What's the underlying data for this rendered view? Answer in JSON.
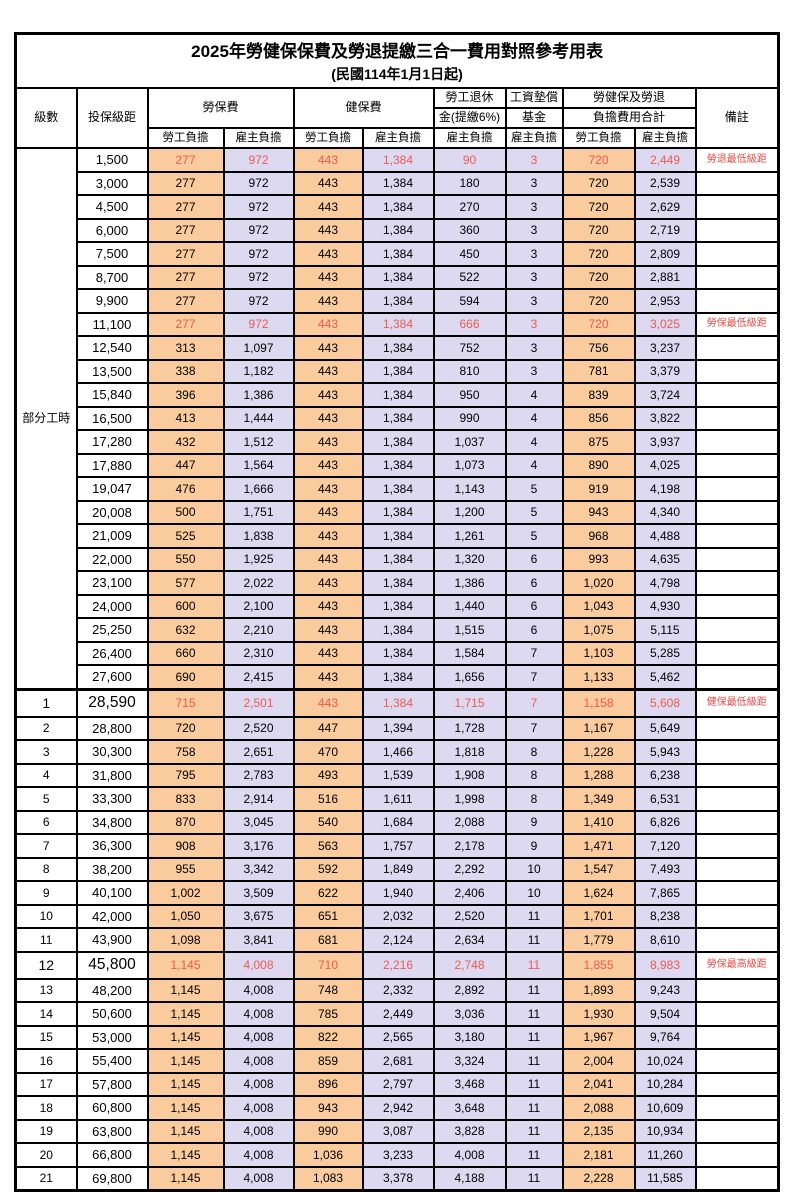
{
  "title": "2025年勞健保保費及勞退提繳三合一費用對照參考用表",
  "subtitle": "(民國114年1月1日起)",
  "header": {
    "level": "級數",
    "bracket": "投保級距",
    "labor_fee": "勞保費",
    "health_fee": "健保費",
    "pension_line1": "勞工退休",
    "pension_line2": "金(提繳6%)",
    "wage_fund_line1": "工資墊償",
    "wage_fund_line2": "基金",
    "total_line1": "勞健保及勞退",
    "total_line2": "負擔費用合計",
    "remark": "備註",
    "employee": "勞工負擔",
    "employer": "雇主負擔"
  },
  "part_time_label": "部分工時",
  "part_time_rowspan": 23,
  "colors": {
    "employee_bg": "#F9CB9D",
    "employer_bg": "#DCD9F0",
    "highlight_text": "#ED5A50",
    "border": "#000000"
  },
  "rows": [
    {
      "level": "",
      "bracket": "1,500",
      "values": [
        "277",
        "972",
        "443",
        "1,384",
        "90",
        "3",
        "720",
        "2,449"
      ],
      "remark": "勞退最低級距",
      "red": true,
      "big": false
    },
    {
      "level": "",
      "bracket": "3,000",
      "values": [
        "277",
        "972",
        "443",
        "1,384",
        "180",
        "3",
        "720",
        "2,539"
      ],
      "remark": "",
      "red": false,
      "big": false
    },
    {
      "level": "",
      "bracket": "4,500",
      "values": [
        "277",
        "972",
        "443",
        "1,384",
        "270",
        "3",
        "720",
        "2,629"
      ],
      "remark": "",
      "red": false,
      "big": false
    },
    {
      "level": "",
      "bracket": "6,000",
      "values": [
        "277",
        "972",
        "443",
        "1,384",
        "360",
        "3",
        "720",
        "2,719"
      ],
      "remark": "",
      "red": false,
      "big": false
    },
    {
      "level": "",
      "bracket": "7,500",
      "values": [
        "277",
        "972",
        "443",
        "1,384",
        "450",
        "3",
        "720",
        "2,809"
      ],
      "remark": "",
      "red": false,
      "big": false
    },
    {
      "level": "",
      "bracket": "8,700",
      "values": [
        "277",
        "972",
        "443",
        "1,384",
        "522",
        "3",
        "720",
        "2,881"
      ],
      "remark": "",
      "red": false,
      "big": false
    },
    {
      "level": "",
      "bracket": "9,900",
      "values": [
        "277",
        "972",
        "443",
        "1,384",
        "594",
        "3",
        "720",
        "2,953"
      ],
      "remark": "",
      "red": false,
      "big": false
    },
    {
      "level": "",
      "bracket": "11,100",
      "values": [
        "277",
        "972",
        "443",
        "1,384",
        "666",
        "3",
        "720",
        "3,025"
      ],
      "remark": "勞保最低級距",
      "red": true,
      "big": false
    },
    {
      "level": "",
      "bracket": "12,540",
      "values": [
        "313",
        "1,097",
        "443",
        "1,384",
        "752",
        "3",
        "756",
        "3,237"
      ],
      "remark": "",
      "red": false,
      "big": false
    },
    {
      "level": "",
      "bracket": "13,500",
      "values": [
        "338",
        "1,182",
        "443",
        "1,384",
        "810",
        "3",
        "781",
        "3,379"
      ],
      "remark": "",
      "red": false,
      "big": false
    },
    {
      "level": "",
      "bracket": "15,840",
      "values": [
        "396",
        "1,386",
        "443",
        "1,384",
        "950",
        "4",
        "839",
        "3,724"
      ],
      "remark": "",
      "red": false,
      "big": false
    },
    {
      "level": "",
      "bracket": "16,500",
      "values": [
        "413",
        "1,444",
        "443",
        "1,384",
        "990",
        "4",
        "856",
        "3,822"
      ],
      "remark": "",
      "red": false,
      "big": false
    },
    {
      "level": "",
      "bracket": "17,280",
      "values": [
        "432",
        "1,512",
        "443",
        "1,384",
        "1,037",
        "4",
        "875",
        "3,937"
      ],
      "remark": "",
      "red": false,
      "big": false
    },
    {
      "level": "",
      "bracket": "17,880",
      "values": [
        "447",
        "1,564",
        "443",
        "1,384",
        "1,073",
        "4",
        "890",
        "4,025"
      ],
      "remark": "",
      "red": false,
      "big": false
    },
    {
      "level": "",
      "bracket": "19,047",
      "values": [
        "476",
        "1,666",
        "443",
        "1,384",
        "1,143",
        "5",
        "919",
        "4,198"
      ],
      "remark": "",
      "red": false,
      "big": false
    },
    {
      "level": "",
      "bracket": "20,008",
      "values": [
        "500",
        "1,751",
        "443",
        "1,384",
        "1,200",
        "5",
        "943",
        "4,340"
      ],
      "remark": "",
      "red": false,
      "big": false
    },
    {
      "level": "",
      "bracket": "21,009",
      "values": [
        "525",
        "1,838",
        "443",
        "1,384",
        "1,261",
        "5",
        "968",
        "4,488"
      ],
      "remark": "",
      "red": false,
      "big": false
    },
    {
      "level": "",
      "bracket": "22,000",
      "values": [
        "550",
        "1,925",
        "443",
        "1,384",
        "1,320",
        "6",
        "993",
        "4,635"
      ],
      "remark": "",
      "red": false,
      "big": false
    },
    {
      "level": "",
      "bracket": "23,100",
      "values": [
        "577",
        "2,022",
        "443",
        "1,384",
        "1,386",
        "6",
        "1,020",
        "4,798"
      ],
      "remark": "",
      "red": false,
      "big": false
    },
    {
      "level": "",
      "bracket": "24,000",
      "values": [
        "600",
        "2,100",
        "443",
        "1,384",
        "1,440",
        "6",
        "1,043",
        "4,930"
      ],
      "remark": "",
      "red": false,
      "big": false
    },
    {
      "level": "",
      "bracket": "25,250",
      "values": [
        "632",
        "2,210",
        "443",
        "1,384",
        "1,515",
        "6",
        "1,075",
        "5,115"
      ],
      "remark": "",
      "red": false,
      "big": false
    },
    {
      "level": "",
      "bracket": "26,400",
      "values": [
        "660",
        "2,310",
        "443",
        "1,384",
        "1,584",
        "7",
        "1,103",
        "5,285"
      ],
      "remark": "",
      "red": false,
      "big": false
    },
    {
      "level": "",
      "bracket": "27,600",
      "values": [
        "690",
        "2,415",
        "443",
        "1,384",
        "1,656",
        "7",
        "1,133",
        "5,462"
      ],
      "remark": "",
      "red": false,
      "big": false
    },
    {
      "level": "1",
      "bracket": "28,590",
      "values": [
        "715",
        "2,501",
        "443",
        "1,384",
        "1,715",
        "7",
        "1,158",
        "5,608"
      ],
      "remark": "健保最低級距",
      "red": true,
      "big": true
    },
    {
      "level": "2",
      "bracket": "28,800",
      "values": [
        "720",
        "2,520",
        "447",
        "1,394",
        "1,728",
        "7",
        "1,167",
        "5,649"
      ],
      "remark": "",
      "red": false,
      "big": false
    },
    {
      "level": "3",
      "bracket": "30,300",
      "values": [
        "758",
        "2,651",
        "470",
        "1,466",
        "1,818",
        "8",
        "1,228",
        "5,943"
      ],
      "remark": "",
      "red": false,
      "big": false
    },
    {
      "level": "4",
      "bracket": "31,800",
      "values": [
        "795",
        "2,783",
        "493",
        "1,539",
        "1,908",
        "8",
        "1,288",
        "6,238"
      ],
      "remark": "",
      "red": false,
      "big": false
    },
    {
      "level": "5",
      "bracket": "33,300",
      "values": [
        "833",
        "2,914",
        "516",
        "1,611",
        "1,998",
        "8",
        "1,349",
        "6,531"
      ],
      "remark": "",
      "red": false,
      "big": false
    },
    {
      "level": "6",
      "bracket": "34,800",
      "values": [
        "870",
        "3,045",
        "540",
        "1,684",
        "2,088",
        "9",
        "1,410",
        "6,826"
      ],
      "remark": "",
      "red": false,
      "big": false
    },
    {
      "level": "7",
      "bracket": "36,300",
      "values": [
        "908",
        "3,176",
        "563",
        "1,757",
        "2,178",
        "9",
        "1,471",
        "7,120"
      ],
      "remark": "",
      "red": false,
      "big": false
    },
    {
      "level": "8",
      "bracket": "38,200",
      "values": [
        "955",
        "3,342",
        "592",
        "1,849",
        "2,292",
        "10",
        "1,547",
        "7,493"
      ],
      "remark": "",
      "red": false,
      "big": false
    },
    {
      "level": "9",
      "bracket": "40,100",
      "values": [
        "1,002",
        "3,509",
        "622",
        "1,940",
        "2,406",
        "10",
        "1,624",
        "7,865"
      ],
      "remark": "",
      "red": false,
      "big": false
    },
    {
      "level": "10",
      "bracket": "42,000",
      "values": [
        "1,050",
        "3,675",
        "651",
        "2,032",
        "2,520",
        "11",
        "1,701",
        "8,238"
      ],
      "remark": "",
      "red": false,
      "big": false
    },
    {
      "level": "11",
      "bracket": "43,900",
      "values": [
        "1,098",
        "3,841",
        "681",
        "2,124",
        "2,634",
        "11",
        "1,779",
        "8,610"
      ],
      "remark": "",
      "red": false,
      "big": false
    },
    {
      "level": "12",
      "bracket": "45,800",
      "values": [
        "1,145",
        "4,008",
        "710",
        "2,216",
        "2,748",
        "11",
        "1,855",
        "8,983"
      ],
      "remark": "勞保最高級距",
      "red": true,
      "big": true
    },
    {
      "level": "13",
      "bracket": "48,200",
      "values": [
        "1,145",
        "4,008",
        "748",
        "2,332",
        "2,892",
        "11",
        "1,893",
        "9,243"
      ],
      "remark": "",
      "red": false,
      "big": false
    },
    {
      "level": "14",
      "bracket": "50,600",
      "values": [
        "1,145",
        "4,008",
        "785",
        "2,449",
        "3,036",
        "11",
        "1,930",
        "9,504"
      ],
      "remark": "",
      "red": false,
      "big": false
    },
    {
      "level": "15",
      "bracket": "53,000",
      "values": [
        "1,145",
        "4,008",
        "822",
        "2,565",
        "3,180",
        "11",
        "1,967",
        "9,764"
      ],
      "remark": "",
      "red": false,
      "big": false
    },
    {
      "level": "16",
      "bracket": "55,400",
      "values": [
        "1,145",
        "4,008",
        "859",
        "2,681",
        "3,324",
        "11",
        "2,004",
        "10,024"
      ],
      "remark": "",
      "red": false,
      "big": false
    },
    {
      "level": "17",
      "bracket": "57,800",
      "values": [
        "1,145",
        "4,008",
        "896",
        "2,797",
        "3,468",
        "11",
        "2,041",
        "10,284"
      ],
      "remark": "",
      "red": false,
      "big": false
    },
    {
      "level": "18",
      "bracket": "60,800",
      "values": [
        "1,145",
        "4,008",
        "943",
        "2,942",
        "3,648",
        "11",
        "2,088",
        "10,609"
      ],
      "remark": "",
      "red": false,
      "big": false
    },
    {
      "level": "19",
      "bracket": "63,800",
      "values": [
        "1,145",
        "4,008",
        "990",
        "3,087",
        "3,828",
        "11",
        "2,135",
        "10,934"
      ],
      "remark": "",
      "red": false,
      "big": false
    },
    {
      "level": "20",
      "bracket": "66,800",
      "values": [
        "1,145",
        "4,008",
        "1,036",
        "3,233",
        "4,008",
        "11",
        "2,181",
        "11,260"
      ],
      "remark": "",
      "red": false,
      "big": false
    },
    {
      "level": "21",
      "bracket": "69,800",
      "values": [
        "1,145",
        "4,008",
        "1,083",
        "3,378",
        "4,188",
        "11",
        "2,228",
        "11,585"
      ],
      "remark": "",
      "red": false,
      "big": false
    }
  ]
}
